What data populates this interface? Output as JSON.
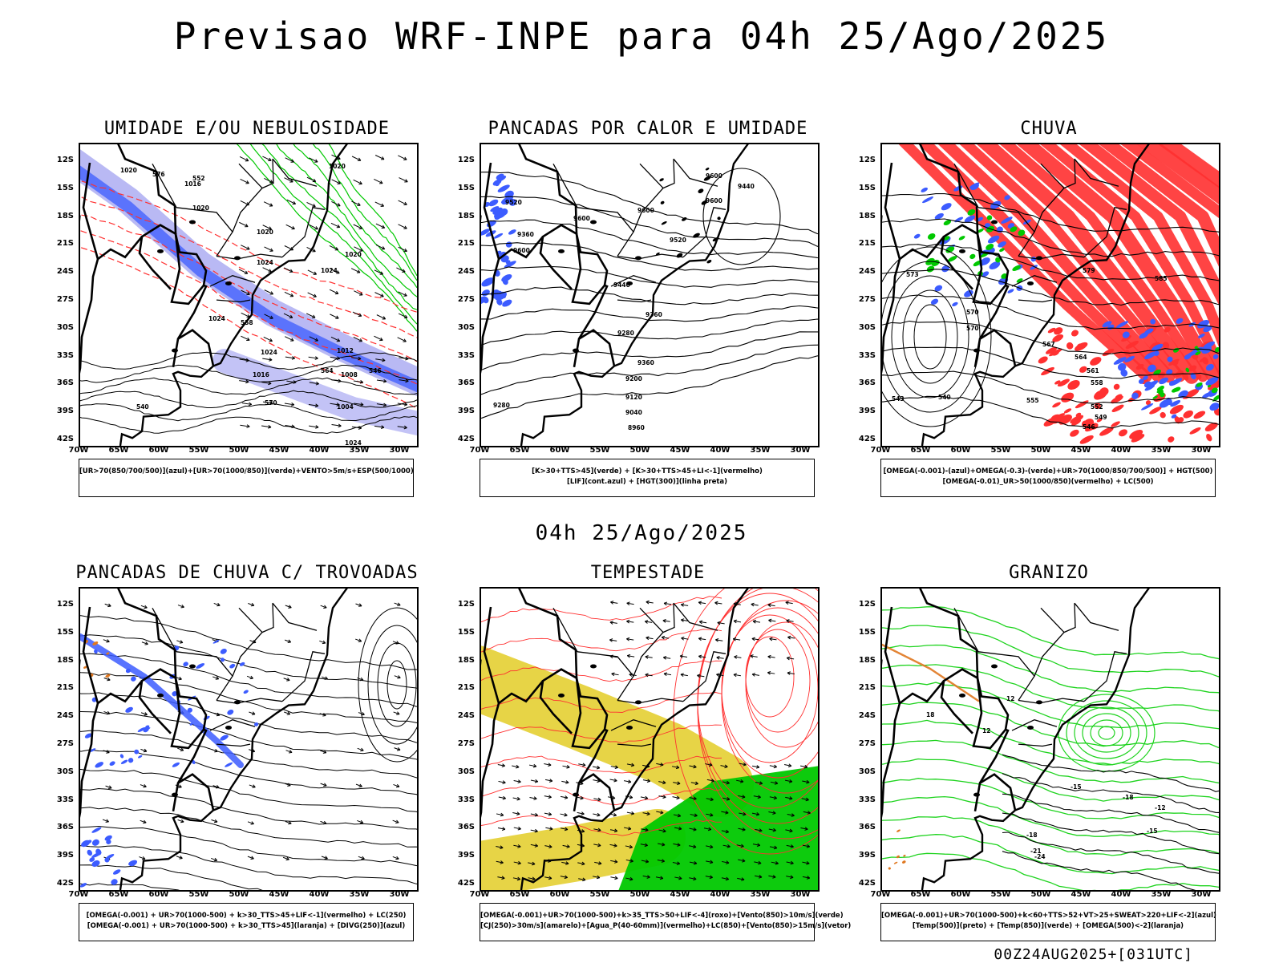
{
  "header": {
    "title": "Previsao WRF-INPE  para 04h 25/Ago/2025",
    "mid_title": "04h 25/Ago/2025",
    "stamp": "00Z24AUG2025+[031UTC]"
  },
  "axes": {
    "lat_labels": [
      "12S",
      "15S",
      "18S",
      "21S",
      "24S",
      "27S",
      "30S",
      "33S",
      "36S",
      "39S",
      "42S"
    ],
    "lon_labels": [
      "70W",
      "65W",
      "60W",
      "55W",
      "50W",
      "45W",
      "40W",
      "35W",
      "30W"
    ]
  },
  "panels": [
    {
      "id": "umidade",
      "title": "UMIDADE E/OU NEBULOSIDADE",
      "legend": [
        "[UR>70(850/700/500)](azul)+[UR>70(1000/850)](verde)+VENTO>5m/s+ESP(500/1000)"
      ],
      "contour_labels": [
        "1020",
        "1016",
        "1020",
        "1020",
        "1024",
        "1024",
        "1020",
        "1024",
        "1024",
        "1024",
        "1020",
        "1016",
        "1012",
        "1008",
        "1004",
        "570",
        "576",
        "552",
        "558",
        "564",
        "546",
        "540"
      ]
    },
    {
      "id": "pancadas-calor",
      "title": "PANCADAS POR CALOR E UMIDADE",
      "legend": [
        "[K>30+TTS>45](verde) + [K>30+TTS>45+LI<-1](vermelho)",
        "[LIF](cont.azul) + [HGT(300)](linha preta)"
      ],
      "contour_labels": [
        "9520",
        "9600",
        "9600",
        "9600",
        "9600",
        "9440",
        "9360",
        "9600",
        "9520",
        "9440",
        "9360",
        "9280",
        "9360",
        "9200",
        "9120",
        "9040",
        "8960",
        "9280"
      ]
    },
    {
      "id": "chuva",
      "title": "CHUVA",
      "legend": [
        "[OMEGA(-0.001)-(azul)+OMEGA(-0.3)-(verde)+UR>70(1000/850/700/500)] + HGT(500)",
        "[OMEGA(-0.01)_UR>50(1000/850)(vermelho) + LC(500)"
      ],
      "contour_labels": [
        "573",
        "570",
        "570",
        "567",
        "564",
        "561",
        "558",
        "585",
        "579",
        "555",
        "552",
        "549",
        "546",
        "543",
        "540"
      ]
    },
    {
      "id": "pancadas-trovoadas",
      "title": "PANCADAS DE CHUVA C/ TROVOADAS",
      "legend": [
        "[OMEGA(-0.001) + UR>70(1000-500) + k>30_TTS>45+LIF<-1](vermelho) + LC(250)",
        "[OMEGA(-0.001) + UR>70(1000-500) + k>30_TTS>45](laranja) + [DIVG(250)](azul)"
      ],
      "contour_labels": []
    },
    {
      "id": "tempestade",
      "title": "TEMPESTADE",
      "legend": [
        "[OMEGA(-0.001)+UR>70(1000-500)+k>35_TTS>50+LIF<-4](roxo)+[Vento(850)>10m/s](verde)",
        "[CJ(250)>30m/s](amarelo)+[Agua_P(40-60mm)](vermelho)+LC(850)+[Vento(850)>15m/s](vetor)"
      ],
      "contour_labels": []
    },
    {
      "id": "granizo",
      "title": "GRANIZO",
      "legend": [
        "[OMEGA(-0.001)+UR>70(1000-500)+k<60+TTS>52+VT>25+SWEAT>220+LIF<-2](azul)",
        "[Temp(500)](preto) + [Temp(850)](verde) + [OMEGA(500)<-2](laranja)"
      ],
      "contour_labels": [
        "-18",
        "-15",
        "-12",
        "-18",
        "-15",
        "-21",
        "-24",
        "18",
        "12",
        "12"
      ]
    }
  ],
  "colors": {
    "frame": "#000000",
    "blue": "#3c5cff",
    "lavender": "#9b9bf0",
    "green": "#00c800",
    "bright_green": "#1ed31e",
    "red": "#ff3030",
    "yellow": "#e6d23c",
    "orange": "#e07820",
    "purple": "#9040e0"
  }
}
